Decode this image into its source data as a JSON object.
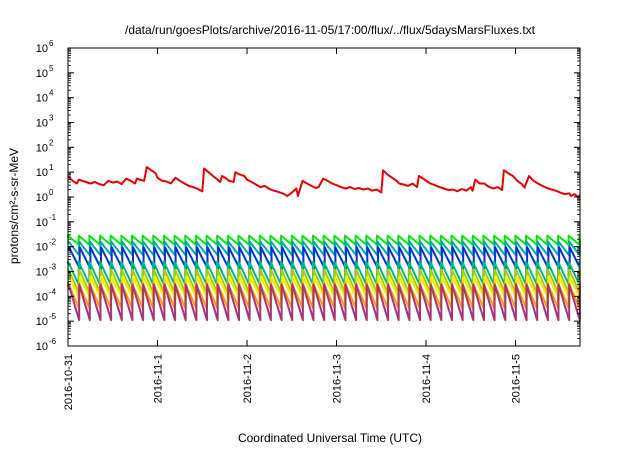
{
  "chart_data": {
    "type": "line",
    "title": "/data/run/goesPlots/archive/2016-11-05/17:00/flux/../flux/5daysMarsFluxes.txt",
    "xlabel": "Coordinated Universal Time (UTC)",
    "ylabel": "protons/cm²-s-sr-MeV",
    "x_ticks": [
      "2016-10-31",
      "2016-11-1",
      "2016-11-2",
      "2016-11-3",
      "2016-11-4",
      "2016-11-5"
    ],
    "x_range_days": [
      0,
      5.72
    ],
    "y_scale": "log",
    "ylim": [
      1e-06,
      1000000.0
    ],
    "y_ticks": [
      {
        "base": "10",
        "exp": "6",
        "value": 1000000.0
      },
      {
        "base": "10",
        "exp": "5",
        "value": 100000.0
      },
      {
        "base": "10",
        "exp": "4",
        "value": 10000.0
      },
      {
        "base": "10",
        "exp": "3",
        "value": 1000.0
      },
      {
        "base": "10",
        "exp": "2",
        "value": 100.0
      },
      {
        "base": "10",
        "exp": "1",
        "value": 10.0
      },
      {
        "base": "10",
        "exp": "0",
        "value": 1.0
      },
      {
        "base": "10",
        "exp": "-1",
        "value": 0.1
      },
      {
        "base": "10",
        "exp": "-2",
        "value": 0.01
      },
      {
        "base": "10",
        "exp": "-3",
        "value": 0.001
      },
      {
        "base": "10",
        "exp": "-4",
        "value": 0.0001
      },
      {
        "base": "10",
        "exp": "-5",
        "value": 1e-05
      },
      {
        "base": "10",
        "exp": "-6",
        "value": 1e-06
      }
    ],
    "grid": false,
    "legend": "none",
    "sawtooth_series": [
      {
        "color": "#00ee00",
        "high": 0.028,
        "low": 0.012
      },
      {
        "color": "#00aaaa",
        "high": 0.016,
        "low": 0.0045
      },
      {
        "color": "#0033dd",
        "high": 0.0095,
        "low": 0.0013
      },
      {
        "color": "#00bb88",
        "high": 0.0025,
        "low": 0.0003
      },
      {
        "color": "#aacc00",
        "high": 0.0012,
        "low": 0.00013
      },
      {
        "color": "#eeee00",
        "high": 0.0006,
        "low": 8e-05
      },
      {
        "color": "#ff9900",
        "high": 0.00035,
        "low": 3.5e-05
      },
      {
        "color": "#aa3377",
        "high": 0.0003,
        "low": 1.1e-05
      }
    ],
    "sawtooth_period_days": 0.119,
    "red_series": {
      "color": "#ee0000",
      "points": [
        [
          0.0,
          7
        ],
        [
          0.05,
          4.5
        ],
        [
          0.1,
          3.5
        ],
        [
          0.12,
          5
        ],
        [
          0.2,
          4
        ],
        [
          0.25,
          3.5
        ],
        [
          0.3,
          4
        ],
        [
          0.35,
          3.3
        ],
        [
          0.4,
          3
        ],
        [
          0.45,
          4.5
        ],
        [
          0.5,
          3.8
        ],
        [
          0.55,
          4.2
        ],
        [
          0.6,
          3.3
        ],
        [
          0.65,
          5.5
        ],
        [
          0.7,
          4.5
        ],
        [
          0.75,
          3.5
        ],
        [
          0.77,
          5.5
        ],
        [
          0.8,
          5
        ],
        [
          0.85,
          4.5
        ],
        [
          0.88,
          16
        ],
        [
          0.93,
          12
        ],
        [
          0.98,
          9
        ],
        [
          1.0,
          6
        ],
        [
          1.05,
          4.5
        ],
        [
          1.1,
          4.2
        ],
        [
          1.15,
          3.5
        ],
        [
          1.2,
          6
        ],
        [
          1.25,
          4.5
        ],
        [
          1.3,
          3.5
        ],
        [
          1.35,
          2.8
        ],
        [
          1.4,
          2.5
        ],
        [
          1.45,
          2.1
        ],
        [
          1.5,
          1.7
        ],
        [
          1.52,
          14
        ],
        [
          1.57,
          10
        ],
        [
          1.62,
          7
        ],
        [
          1.67,
          5
        ],
        [
          1.7,
          4
        ],
        [
          1.72,
          7
        ],
        [
          1.77,
          5.5
        ],
        [
          1.8,
          4.5
        ],
        [
          1.85,
          4
        ],
        [
          1.87,
          10
        ],
        [
          1.92,
          8
        ],
        [
          1.97,
          7
        ],
        [
          2.0,
          5
        ],
        [
          2.05,
          4
        ],
        [
          2.1,
          3.2
        ],
        [
          2.15,
          2.5
        ],
        [
          2.2,
          2.8
        ],
        [
          2.25,
          2.1
        ],
        [
          2.3,
          1.8
        ],
        [
          2.35,
          1.6
        ],
        [
          2.4,
          1.4
        ],
        [
          2.45,
          1.1
        ],
        [
          2.5,
          1.5
        ],
        [
          2.55,
          2.2
        ],
        [
          2.57,
          1.1
        ],
        [
          2.62,
          4.5
        ],
        [
          2.67,
          3.5
        ],
        [
          2.72,
          2.8
        ],
        [
          2.77,
          2.3
        ],
        [
          2.8,
          2.5
        ],
        [
          2.85,
          5.5
        ],
        [
          2.9,
          4.5
        ],
        [
          2.95,
          3.5
        ],
        [
          3.0,
          3
        ],
        [
          3.05,
          2.5
        ],
        [
          3.1,
          2.2
        ],
        [
          3.15,
          2.5
        ],
        [
          3.2,
          2.1
        ],
        [
          3.25,
          2.3
        ],
        [
          3.3,
          2.0
        ],
        [
          3.35,
          2.2
        ],
        [
          3.4,
          1.8
        ],
        [
          3.45,
          2.0
        ],
        [
          3.5,
          1.5
        ],
        [
          3.52,
          12
        ],
        [
          3.57,
          8
        ],
        [
          3.62,
          6
        ],
        [
          3.67,
          4.5
        ],
        [
          3.7,
          3.5
        ],
        [
          3.75,
          3.2
        ],
        [
          3.8,
          2.8
        ],
        [
          3.85,
          3.5
        ],
        [
          3.9,
          2.5
        ],
        [
          3.92,
          7
        ],
        [
          3.97,
          5.5
        ],
        [
          4.0,
          4.5
        ],
        [
          4.05,
          3.5
        ],
        [
          4.1,
          3
        ],
        [
          4.15,
          2.5
        ],
        [
          4.2,
          2.2
        ],
        [
          4.25,
          1.9
        ],
        [
          4.3,
          2.0
        ],
        [
          4.35,
          1.7
        ],
        [
          4.4,
          2.1
        ],
        [
          4.45,
          1.8
        ],
        [
          4.5,
          2.5
        ],
        [
          4.52,
          1.8
        ],
        [
          4.55,
          5
        ],
        [
          4.6,
          3.5
        ],
        [
          4.65,
          3.5
        ],
        [
          4.7,
          2.6
        ],
        [
          4.75,
          2.2
        ],
        [
          4.8,
          2.5
        ],
        [
          4.85,
          1.9
        ],
        [
          4.87,
          12
        ],
        [
          4.92,
          9
        ],
        [
          4.97,
          7
        ],
        [
          5.02,
          4.5
        ],
        [
          5.07,
          3.3
        ],
        [
          5.1,
          2.4
        ],
        [
          5.15,
          7
        ],
        [
          5.2,
          4.5
        ],
        [
          5.25,
          3.5
        ],
        [
          5.3,
          2.8
        ],
        [
          5.35,
          2.3
        ],
        [
          5.4,
          2.0
        ],
        [
          5.45,
          1.8
        ],
        [
          5.5,
          1.5
        ],
        [
          5.55,
          1.3
        ],
        [
          5.6,
          1.4
        ],
        [
          5.62,
          1.1
        ],
        [
          5.66,
          1.3
        ],
        [
          5.7,
          1.0
        ],
        [
          5.72,
          1.2
        ]
      ]
    }
  }
}
